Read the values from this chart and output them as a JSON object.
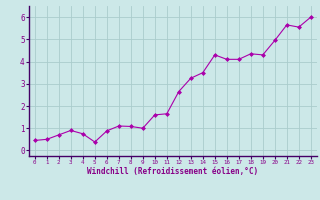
{
  "x": [
    0,
    1,
    2,
    3,
    4,
    5,
    6,
    7,
    8,
    9,
    10,
    11,
    12,
    13,
    14,
    15,
    16,
    17,
    18,
    19,
    20,
    21,
    22,
    23
  ],
  "y": [
    0.45,
    0.5,
    0.7,
    0.9,
    0.75,
    0.38,
    0.88,
    1.1,
    1.08,
    1.0,
    1.6,
    1.65,
    2.65,
    3.25,
    3.5,
    4.3,
    4.1,
    4.1,
    4.35,
    4.3,
    4.95,
    5.65,
    5.55,
    6.0
  ],
  "line_color": "#aa00aa",
  "marker": "D",
  "marker_size": 2,
  "background_color": "#cce8e8",
  "grid_color": "#aacccc",
  "xlabel": "Windchill (Refroidissement éolien,°C)",
  "xlabel_color": "#880088",
  "tick_color": "#880088",
  "xlim": [
    -0.5,
    23.5
  ],
  "ylim": [
    -0.25,
    6.5
  ],
  "xticks": [
    0,
    1,
    2,
    3,
    4,
    5,
    6,
    7,
    8,
    9,
    10,
    11,
    12,
    13,
    14,
    15,
    16,
    17,
    18,
    19,
    20,
    21,
    22,
    23
  ],
  "yticks": [
    0,
    1,
    2,
    3,
    4,
    5,
    6
  ],
  "spine_color": "#440066",
  "xlabel_fontsize": 5.5,
  "tick_fontsize_x": 4.2,
  "tick_fontsize_y": 5.5
}
